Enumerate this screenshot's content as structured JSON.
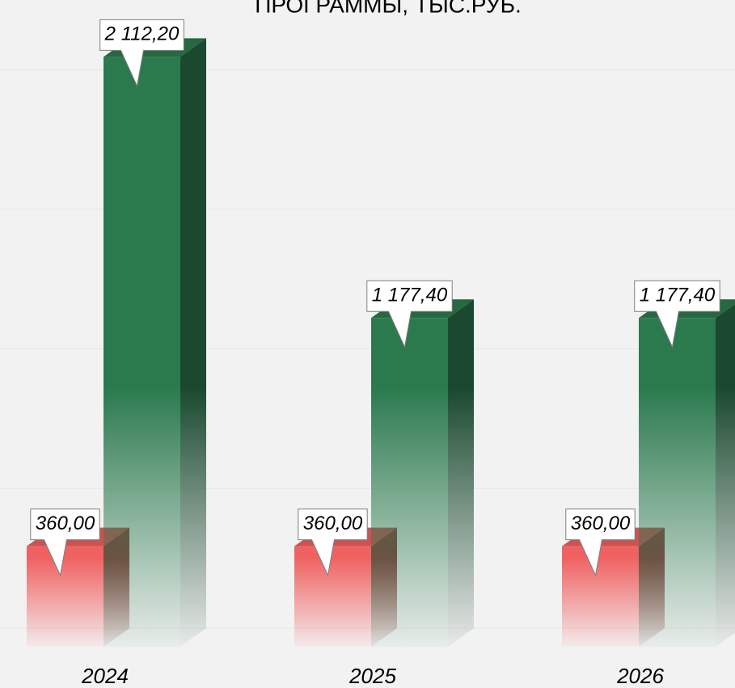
{
  "chart_data": {
    "type": "bar3d",
    "title": "ПРОГРАММЫ, ТЫС.РУБ.",
    "categories": [
      "2024",
      "2025",
      "2026"
    ],
    "series": [
      {
        "color": "#f06262",
        "values": [
          360,
          360,
          360
        ],
        "value_labels": [
          "360,00",
          "360,00",
          "360,00"
        ]
      },
      {
        "color": "#2b7a4e",
        "values": [
          2112.2,
          1177.4,
          1177.4
        ],
        "value_labels": [
          "2 112,20",
          "1 177,40",
          "1 177,40"
        ]
      }
    ],
    "ylim": [
      0,
      2200
    ],
    "yticks": [
      0,
      500,
      1000,
      1500,
      2000
    ],
    "grid": true
  }
}
